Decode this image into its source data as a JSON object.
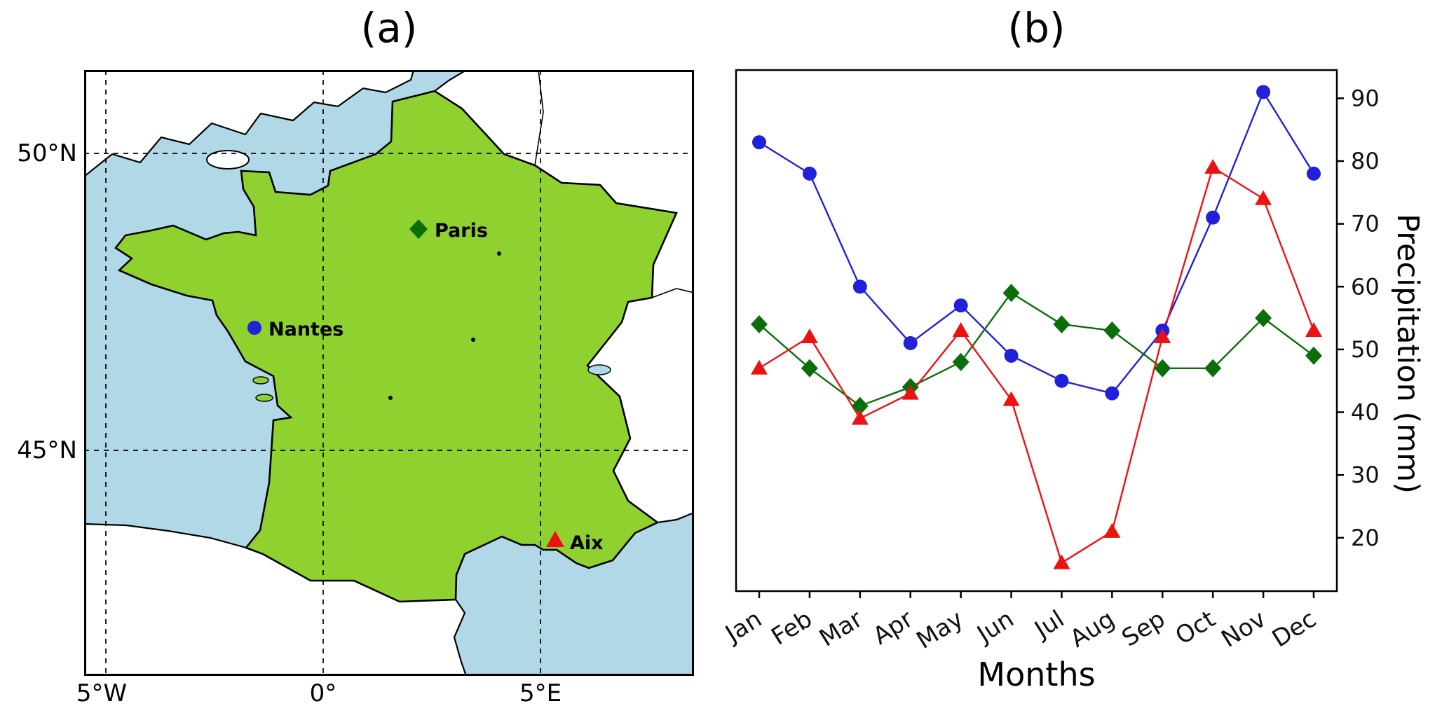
{
  "figure": {
    "panel_a": {
      "title": "(a)",
      "lat_ticks": [
        "50°N",
        "45°N"
      ],
      "lon_ticks": [
        "5°W",
        "0°",
        "5°E"
      ],
      "cities": [
        {
          "name": "Nantes",
          "marker": "circle",
          "color": "#2020dd"
        },
        {
          "name": "Paris",
          "marker": "diamond",
          "color": "#0a6e0a"
        },
        {
          "name": "Aix",
          "marker": "triangle",
          "color": "#ee1111"
        }
      ],
      "map_colors": {
        "sea": "#b0d8e6",
        "france": "#8fd12e",
        "other_land": "#ffffff",
        "border": "#000000"
      }
    },
    "panel_b": {
      "title": "(b)"
    }
  },
  "chart_data": {
    "type": "line",
    "title": "(b)",
    "xlabel": "Months",
    "ylabel": "Precipitation (mm)",
    "categories": [
      "Jan",
      "Feb",
      "Mar",
      "Apr",
      "May",
      "Jun",
      "Jul",
      "Aug",
      "Sep",
      "Oct",
      "Nov",
      "Dec"
    ],
    "y_ticks": [
      20,
      30,
      40,
      50,
      60,
      70,
      80,
      90
    ],
    "ylim": [
      11.5,
      94.5
    ],
    "grid": false,
    "legend": "none",
    "series": [
      {
        "name": "Nantes",
        "color": "#2020dd",
        "marker": "circle",
        "values": [
          83,
          78,
          60,
          51,
          57,
          49,
          45,
          43,
          53,
          71,
          91,
          78
        ]
      },
      {
        "name": "Paris",
        "color": "#0a6e0a",
        "marker": "diamond",
        "values": [
          54,
          47,
          41,
          44,
          48,
          59,
          54,
          53,
          47,
          47,
          55,
          49
        ]
      },
      {
        "name": "Aix",
        "color": "#ee1111",
        "marker": "triangle",
        "values": [
          47,
          52,
          39,
          43,
          53,
          42,
          16,
          21,
          52,
          79,
          74,
          53
        ]
      }
    ]
  }
}
